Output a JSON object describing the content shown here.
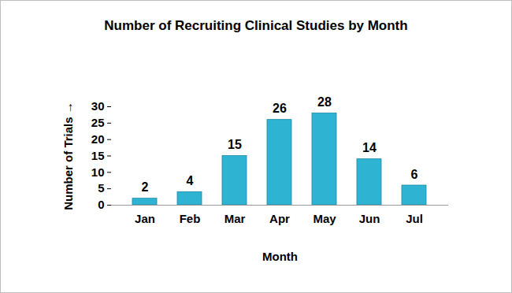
{
  "chart_data": {
    "type": "bar",
    "title": "Number of Recruiting Clinical Studies by Month",
    "x_label": "Month",
    "y_label": "Number of Trials",
    "categories": [
      "Jan",
      "Feb",
      "Mar",
      "Apr",
      "May",
      "Jun",
      "Jul"
    ],
    "values": [
      2,
      4,
      15,
      26,
      28,
      14,
      6
    ],
    "color": "#2fb3d3",
    "ylim": [
      0,
      30
    ],
    "yticks": [
      0,
      5,
      10,
      15,
      20,
      25,
      30
    ],
    "grid": false,
    "data_labels": true
  }
}
